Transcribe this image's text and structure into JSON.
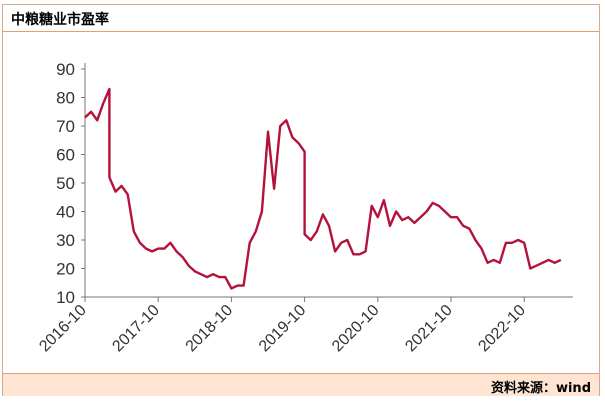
{
  "header": {
    "title": "中粮糖业市盈率"
  },
  "footer": {
    "source": "资料来源：wind"
  },
  "colors": {
    "line": "#b5123b",
    "axis": "#777777",
    "tick_text": "#333333"
  },
  "chart_data": {
    "type": "line",
    "title": "中粮糖业市盈率",
    "xlabel": "",
    "ylabel": "",
    "ylim": [
      10,
      90
    ],
    "yticks": [
      10,
      20,
      30,
      40,
      50,
      60,
      70,
      80,
      90
    ],
    "xlim": [
      "2016-10",
      "2023-06"
    ],
    "xticks": [
      "2016-10",
      "2017-10",
      "2018-10",
      "2019-10",
      "2020-10",
      "2021-10",
      "2022-10"
    ],
    "grid": false,
    "legend": "none",
    "series": [
      {
        "points": [
          [
            "2016-10",
            73
          ],
          [
            "2016-11",
            75
          ],
          [
            "2016-12",
            72
          ],
          [
            "2017-01",
            78
          ],
          [
            "2017-02",
            83
          ],
          [
            "2017-02",
            52
          ],
          [
            "2017-03",
            47
          ],
          [
            "2017-04",
            49
          ],
          [
            "2017-05",
            46
          ],
          [
            "2017-06",
            33
          ],
          [
            "2017-07",
            29
          ],
          [
            "2017-08",
            27
          ],
          [
            "2017-09",
            26
          ],
          [
            "2017-10",
            27
          ],
          [
            "2017-11",
            27
          ],
          [
            "2017-12",
            29
          ],
          [
            "2018-01",
            26
          ],
          [
            "2018-02",
            24
          ],
          [
            "2018-03",
            21
          ],
          [
            "2018-04",
            19
          ],
          [
            "2018-05",
            18
          ],
          [
            "2018-06",
            17
          ],
          [
            "2018-07",
            18
          ],
          [
            "2018-08",
            17
          ],
          [
            "2018-09",
            17
          ],
          [
            "2018-10",
            13
          ],
          [
            "2018-11",
            14
          ],
          [
            "2018-12",
            14
          ],
          [
            "2019-01",
            29
          ],
          [
            "2019-02",
            33
          ],
          [
            "2019-03",
            40
          ],
          [
            "2019-04",
            68
          ],
          [
            "2019-05",
            48
          ],
          [
            "2019-06",
            70
          ],
          [
            "2019-07",
            72
          ],
          [
            "2019-08",
            66
          ],
          [
            "2019-09",
            64
          ],
          [
            "2019-10",
            61
          ],
          [
            "2019-10",
            32
          ],
          [
            "2019-11",
            30
          ],
          [
            "2019-12",
            33
          ],
          [
            "2020-01",
            39
          ],
          [
            "2020-02",
            35
          ],
          [
            "2020-03",
            26
          ],
          [
            "2020-04",
            29
          ],
          [
            "2020-05",
            30
          ],
          [
            "2020-06",
            25
          ],
          [
            "2020-07",
            25
          ],
          [
            "2020-08",
            26
          ],
          [
            "2020-09",
            42
          ],
          [
            "2020-10",
            38
          ],
          [
            "2020-11",
            44
          ],
          [
            "2020-12",
            35
          ],
          [
            "2021-01",
            40
          ],
          [
            "2021-02",
            37
          ],
          [
            "2021-03",
            38
          ],
          [
            "2021-04",
            36
          ],
          [
            "2021-05",
            38
          ],
          [
            "2021-06",
            40
          ],
          [
            "2021-07",
            43
          ],
          [
            "2021-08",
            42
          ],
          [
            "2021-09",
            40
          ],
          [
            "2021-10",
            38
          ],
          [
            "2021-11",
            38
          ],
          [
            "2021-12",
            35
          ],
          [
            "2022-01",
            34
          ],
          [
            "2022-02",
            30
          ],
          [
            "2022-03",
            27
          ],
          [
            "2022-04",
            22
          ],
          [
            "2022-05",
            23
          ],
          [
            "2022-06",
            22
          ],
          [
            "2022-07",
            29
          ],
          [
            "2022-08",
            29
          ],
          [
            "2022-09",
            30
          ],
          [
            "2022-10",
            29
          ],
          [
            "2022-11",
            20
          ],
          [
            "2022-12",
            21
          ],
          [
            "2023-01",
            22
          ],
          [
            "2023-02",
            23
          ],
          [
            "2023-03",
            22
          ],
          [
            "2023-04",
            23
          ]
        ]
      }
    ]
  }
}
